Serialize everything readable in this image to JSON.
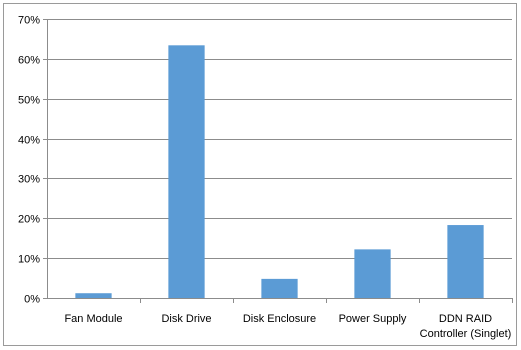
{
  "chart_data": {
    "type": "bar",
    "title": "",
    "xlabel": "",
    "ylabel": "",
    "categories": [
      [
        "Fan Module"
      ],
      [
        "Disk Drive"
      ],
      [
        "Disk Enclosure"
      ],
      [
        "Power Supply"
      ],
      [
        "DDN RAID",
        "Controller (Singlet)"
      ]
    ],
    "values": [
      1.2,
      63.4,
      4.8,
      12.2,
      18.3
    ],
    "ylim": [
      0,
      70
    ],
    "yticks": [
      0,
      10,
      20,
      30,
      40,
      50,
      60,
      70
    ],
    "ytick_format": "{v}%",
    "grid": true,
    "legend": "none",
    "bar_color": "#5b9bd5"
  }
}
